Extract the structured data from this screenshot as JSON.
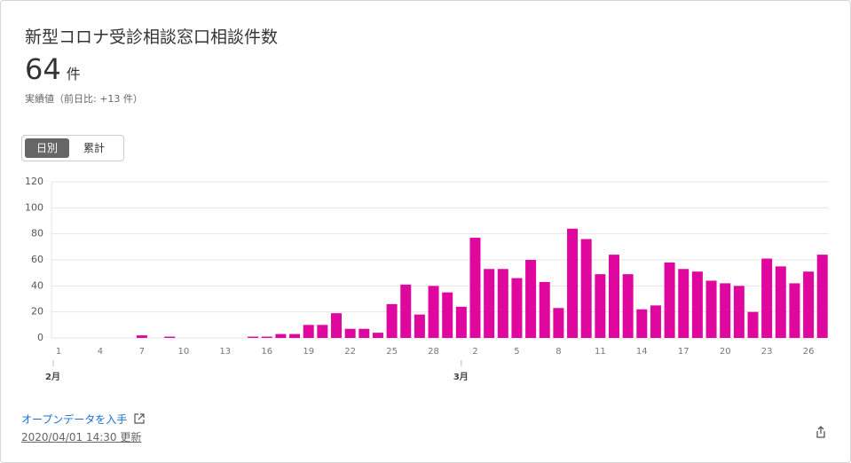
{
  "header": {
    "title": "新型コロナ受診相談窓口相談件数",
    "value": 64,
    "unit": "件",
    "note": "実績値（前日比: +13 件）"
  },
  "tabs": [
    "日別",
    "累計"
  ],
  "chart_data": {
    "type": "bar",
    "color": "#e0079f",
    "grid": true,
    "categories": [
      "1",
      null,
      null,
      "4",
      null,
      null,
      "7",
      null,
      null,
      "10",
      null,
      null,
      "13",
      null,
      null,
      "16",
      null,
      null,
      "19",
      null,
      null,
      "22",
      null,
      null,
      "25",
      null,
      null,
      "28",
      null,
      null,
      "2",
      null,
      null,
      "5",
      null,
      null,
      "8",
      null,
      null,
      "11",
      null,
      null,
      "14",
      null,
      null,
      "17",
      null,
      null,
      "20",
      null,
      null,
      "23",
      null,
      null,
      "26",
      null
    ],
    "months": [
      "2月",
      "3月"
    ],
    "values": [
      0,
      0,
      0,
      0,
      0,
      0,
      2,
      0,
      1,
      0,
      0,
      0,
      0,
      0,
      1,
      1,
      3,
      3,
      10,
      10,
      19,
      7,
      7,
      4,
      26,
      41,
      18,
      40,
      35,
      24,
      77,
      53,
      53,
      46,
      60,
      43,
      23,
      84,
      76,
      49,
      64,
      49,
      22,
      25,
      58,
      53,
      51,
      44,
      42,
      40,
      20,
      61,
      55,
      42,
      51,
      64
    ],
    "ylim": [
      0,
      120
    ],
    "yticks": [
      0,
      20,
      40,
      60,
      80,
      100,
      120
    ]
  },
  "footer": {
    "link": "オープンデータを入手",
    "updated": "2020/04/01 14:30 更新"
  }
}
